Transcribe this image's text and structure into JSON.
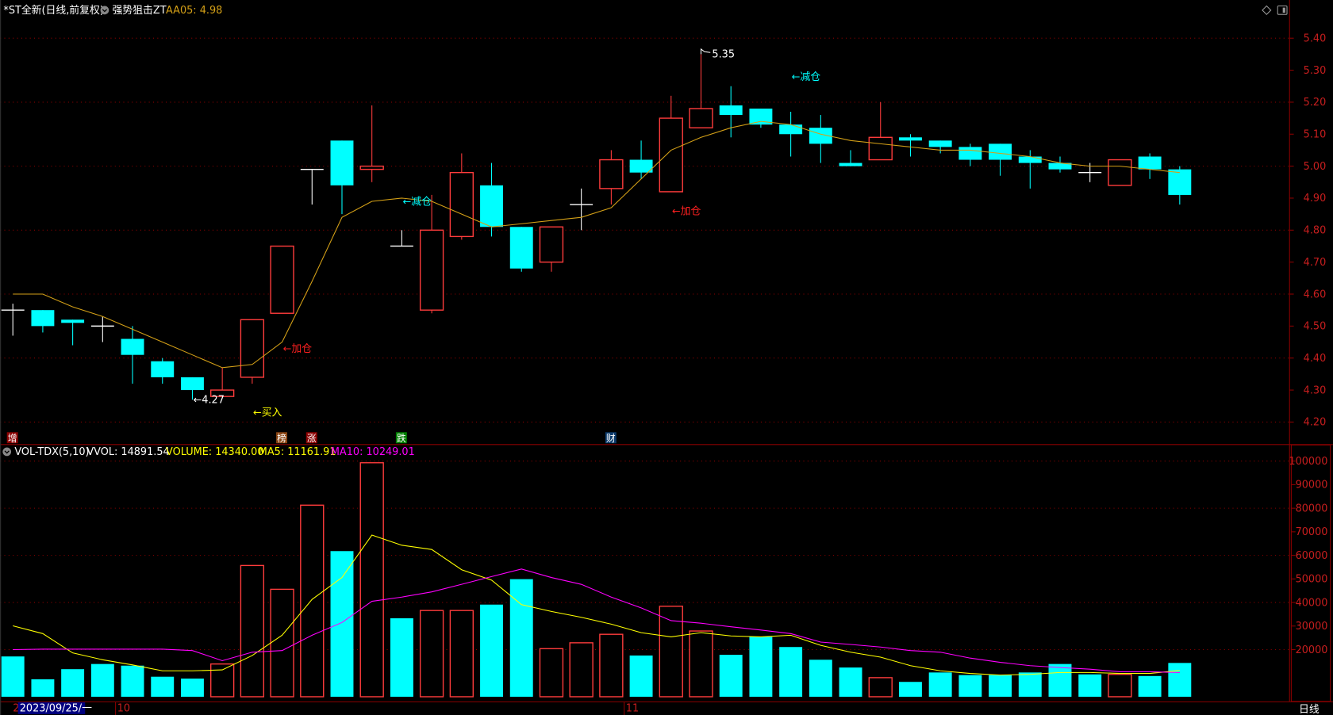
{
  "header": {
    "title": "*ST全新(日线,前复权)",
    "indicator": "强势狙击ZT",
    "aa05_label": "AA05: 4.98"
  },
  "volume_header": {
    "name": "VOL-TDX(5,10)",
    "vvol": "VVOL: 14891.54",
    "volume": "VOLUME: 14340.00",
    "ma5": "MA5: 11161.91",
    "ma10": "MA10: 10249.01"
  },
  "colors": {
    "up": "#ff3c3c",
    "down": "#00ffff",
    "doji": "#ffffff",
    "ma_price": "#d4a017",
    "vol_ma5": "#ffff00",
    "vol_ma10": "#ff00ff",
    "axis": "#c81e1e",
    "grid": "#8b0000"
  },
  "icons": [
    "diamond-icon",
    "window-toggle-icon",
    "collapse-circle-icon"
  ],
  "bottom_axis": {
    "cursor_prefix": "2",
    "cursor_date": "2023/09/25/一",
    "months": [
      {
        "label": "10",
        "index": 4
      },
      {
        "label": "11",
        "index": 21
      }
    ],
    "period": "日线"
  },
  "markers": [
    {
      "label": "增",
      "index": 0,
      "bg": "#8b0000"
    },
    {
      "label": "榜",
      "index": 9,
      "bg": "#8b4513"
    },
    {
      "label": "涨",
      "index": 10,
      "bg": "#8b0000"
    },
    {
      "label": "跌",
      "index": 13,
      "bg": "#008000"
    },
    {
      "label": "财",
      "index": 20,
      "bg": "#0b3a6b"
    }
  ],
  "annotations": [
    {
      "text": "←4.27",
      "index": 6,
      "price": 4.27,
      "color": "#ffffff"
    },
    {
      "text": "←买入",
      "index": 8,
      "price": 4.23,
      "color": "#ffff00"
    },
    {
      "text": "←加仓",
      "index": 9,
      "price": 4.43,
      "color": "#ff2020"
    },
    {
      "text": "←减仓",
      "index": 13,
      "price": 4.89,
      "color": "#00ffff"
    },
    {
      "text": "5.35",
      "index": 23,
      "price": 5.35,
      "color": "#ffffff"
    },
    {
      "text": "←加仓",
      "index": 22,
      "price": 4.86,
      "color": "#ff2020"
    },
    {
      "text": "←减仓",
      "index": 26,
      "price": 5.28,
      "color": "#00ffff"
    }
  ],
  "chart_data": [
    {
      "type": "candlestick",
      "title": "*ST全新(日线,前复权)",
      "ylim": [
        4.17,
        5.44
      ],
      "yticks": [
        4.2,
        4.3,
        4.4,
        4.5,
        4.6,
        4.7,
        4.8,
        4.9,
        5.0,
        5.1,
        5.2,
        5.3,
        5.4
      ],
      "grid": true,
      "ohlc": [
        [
          4.55,
          4.57,
          4.47,
          4.55
        ],
        [
          4.55,
          4.55,
          4.48,
          4.5
        ],
        [
          4.52,
          4.52,
          4.44,
          4.51
        ],
        [
          4.5,
          4.53,
          4.45,
          4.5
        ],
        [
          4.46,
          4.5,
          4.32,
          4.41
        ],
        [
          4.39,
          4.4,
          4.32,
          4.34
        ],
        [
          4.34,
          4.34,
          4.27,
          4.3
        ],
        [
          4.28,
          4.37,
          4.28,
          4.3
        ],
        [
          4.34,
          4.52,
          4.32,
          4.52
        ],
        [
          4.54,
          4.75,
          4.54,
          4.75
        ],
        [
          4.99,
          4.99,
          4.88,
          4.99
        ],
        [
          5.08,
          5.08,
          4.85,
          4.94
        ],
        [
          4.99,
          5.19,
          4.95,
          5.0
        ],
        [
          4.75,
          4.8,
          4.75,
          4.75
        ],
        [
          4.55,
          4.91,
          4.54,
          4.8
        ],
        [
          4.78,
          5.04,
          4.77,
          4.98
        ],
        [
          4.94,
          5.01,
          4.78,
          4.81
        ],
        [
          4.81,
          4.81,
          4.67,
          4.68
        ],
        [
          4.7,
          4.81,
          4.67,
          4.81
        ],
        [
          4.88,
          4.93,
          4.8,
          4.88
        ],
        [
          4.93,
          5.05,
          4.88,
          5.02
        ],
        [
          5.02,
          5.08,
          4.96,
          4.98
        ],
        [
          4.92,
          5.22,
          4.92,
          5.15
        ],
        [
          5.12,
          5.35,
          5.12,
          5.18
        ],
        [
          5.19,
          5.25,
          5.09,
          5.16
        ],
        [
          5.18,
          5.18,
          5.12,
          5.13
        ],
        [
          5.13,
          5.17,
          5.03,
          5.1
        ],
        [
          5.12,
          5.16,
          5.01,
          5.07
        ],
        [
          5.01,
          5.05,
          5.0,
          5.0
        ],
        [
          5.02,
          5.2,
          5.02,
          5.09
        ],
        [
          5.09,
          5.1,
          5.03,
          5.08
        ],
        [
          5.08,
          5.08,
          5.04,
          5.06
        ],
        [
          5.06,
          5.07,
          5.0,
          5.02
        ],
        [
          5.07,
          5.07,
          4.97,
          5.02
        ],
        [
          5.03,
          5.05,
          4.93,
          5.01
        ],
        [
          5.01,
          5.03,
          4.98,
          4.99
        ],
        [
          4.98,
          5.01,
          4.95,
          4.98
        ],
        [
          4.94,
          5.02,
          4.94,
          5.02
        ],
        [
          5.03,
          5.04,
          4.96,
          4.99
        ],
        [
          4.99,
          5.0,
          4.88,
          4.91
        ]
      ],
      "ma": {
        "name": "AA05",
        "values": [
          4.6,
          4.6,
          4.56,
          4.53,
          4.49,
          4.45,
          4.41,
          4.37,
          4.38,
          4.45,
          4.64,
          4.84,
          4.89,
          4.9,
          4.89,
          4.85,
          4.81,
          4.82,
          4.83,
          4.84,
          4.87,
          4.96,
          5.05,
          5.09,
          5.12,
          5.14,
          5.13,
          5.1,
          5.08,
          5.07,
          5.06,
          5.05,
          5.05,
          5.04,
          5.03,
          5.01,
          5.0,
          5.0,
          4.99,
          4.98
        ]
      }
    },
    {
      "type": "bar",
      "title": "VOL-TDX(5,10)",
      "ylim": [
        0,
        102000
      ],
      "yticks": [
        20000,
        30000,
        40000,
        50000,
        60000,
        70000,
        80000,
        90000,
        100000
      ],
      "grid": true,
      "values": [
        17100,
        7400,
        11700,
        13900,
        13200,
        8500,
        7700,
        13900,
        55700,
        45600,
        81300,
        61800,
        99300,
        33300,
        36600,
        36600,
        39100,
        49900,
        20400,
        22900,
        26500,
        17500,
        38400,
        27900,
        17800,
        25400,
        21100,
        15700,
        12400,
        8100,
        6300,
        10300,
        9200,
        9200,
        10300,
        13900,
        9500,
        9500,
        8800,
        14340
      ],
      "direction": [
        "down",
        "down",
        "down",
        "down",
        "down",
        "down",
        "down",
        "up",
        "up",
        "up",
        "up",
        "down",
        "up",
        "down",
        "up",
        "up",
        "down",
        "down",
        "up",
        "up",
        "up",
        "down",
        "up",
        "up",
        "down",
        "down",
        "down",
        "down",
        "down",
        "up",
        "down",
        "down",
        "down",
        "down",
        "down",
        "down",
        "down",
        "up",
        "down",
        "down"
      ],
      "series": [
        {
          "name": "MA5",
          "values": [
            30100,
            26800,
            18600,
            15700,
            13500,
            11000,
            11000,
            11400,
            17500,
            26100,
            41300,
            50600,
            68600,
            64300,
            62500,
            53900,
            49500,
            39100,
            36200,
            33700,
            30800,
            27200,
            25400,
            27200,
            25800,
            25400,
            26100,
            21800,
            18900,
            16800,
            13200,
            11000,
            9900,
            9200,
            9500,
            10300,
            10300,
            9900,
            9900,
            11162
          ]
        },
        {
          "name": "MA10",
          "values": [
            20000,
            20200,
            20200,
            20200,
            20200,
            20200,
            19600,
            15300,
            18900,
            19600,
            26100,
            31500,
            40500,
            42300,
            44500,
            47700,
            51000,
            54200,
            50600,
            47700,
            42300,
            37700,
            32300,
            31200,
            29700,
            28300,
            26800,
            23200,
            22200,
            21100,
            19600,
            18900,
            16400,
            14600,
            13200,
            12400,
            11700,
            10600,
            10600,
            10249
          ]
        }
      ]
    }
  ]
}
